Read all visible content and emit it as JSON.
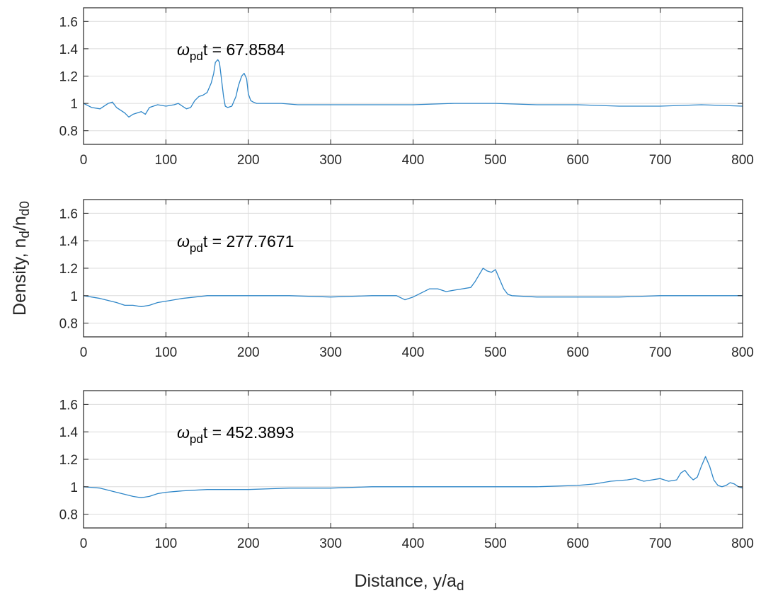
{
  "figure": {
    "xlabel": "Distance, y/a",
    "xlabel_sub": "d",
    "ylabel_main": "Density, n",
    "ylabel_sub1": "d",
    "ylabel_mid": "/n",
    "ylabel_sub2": "d0",
    "line_color": "#2E86C8"
  },
  "chart_data": [
    {
      "type": "line",
      "annotation": {
        "symbol": "ω",
        "sub": "pd",
        "rest": "t = 67.8584"
      },
      "xlim": [
        0,
        800
      ],
      "ylim": [
        0.7,
        1.7
      ],
      "xticks": [
        0,
        100,
        200,
        300,
        400,
        500,
        600,
        700,
        800
      ],
      "yticks": [
        0.8,
        1,
        1.2,
        1.4,
        1.6
      ],
      "ytick_labels": [
        "0.8",
        "1",
        "1.2",
        "1.4",
        "1.6"
      ],
      "grid": true,
      "series": [
        {
          "x": [
            0,
            10,
            20,
            30,
            35,
            40,
            50,
            55,
            60,
            70,
            75,
            80,
            90,
            100,
            110,
            115,
            120,
            125,
            130,
            135,
            140,
            145,
            150,
            155,
            158,
            160,
            163,
            165,
            168,
            170,
            172,
            175,
            180,
            185,
            188,
            192,
            195,
            198,
            200,
            203,
            206,
            210,
            220,
            240,
            260,
            300,
            350,
            400,
            450,
            480,
            500,
            550,
            600,
            650,
            700,
            750,
            800
          ],
          "y": [
            1.0,
            0.97,
            0.96,
            1.0,
            1.01,
            0.97,
            0.93,
            0.9,
            0.92,
            0.94,
            0.92,
            0.97,
            0.99,
            0.98,
            0.99,
            1.0,
            0.98,
            0.96,
            0.97,
            1.02,
            1.05,
            1.06,
            1.08,
            1.15,
            1.22,
            1.3,
            1.32,
            1.3,
            1.15,
            1.05,
            0.98,
            0.97,
            0.98,
            1.05,
            1.13,
            1.2,
            1.22,
            1.18,
            1.07,
            1.02,
            1.01,
            1.0,
            1.0,
            1.0,
            0.99,
            0.99,
            0.99,
            0.99,
            1.0,
            1.0,
            1.0,
            0.99,
            0.99,
            0.98,
            0.98,
            0.99,
            0.98
          ]
        }
      ]
    },
    {
      "type": "line",
      "annotation": {
        "symbol": "ω",
        "sub": "pd",
        "rest": "t = 277.7671"
      },
      "xlim": [
        0,
        800
      ],
      "ylim": [
        0.7,
        1.7
      ],
      "xticks": [
        0,
        100,
        200,
        300,
        400,
        500,
        600,
        700,
        800
      ],
      "yticks": [
        0.8,
        1,
        1.2,
        1.4,
        1.6
      ],
      "ytick_labels": [
        "0.8",
        "1",
        "1.2",
        "1.4",
        "1.6"
      ],
      "grid": true,
      "series": [
        {
          "x": [
            0,
            20,
            40,
            50,
            60,
            70,
            80,
            90,
            100,
            120,
            150,
            200,
            250,
            300,
            350,
            380,
            390,
            400,
            410,
            420,
            430,
            440,
            450,
            460,
            470,
            475,
            480,
            485,
            490,
            495,
            500,
            505,
            510,
            515,
            520,
            550,
            600,
            650,
            700,
            750,
            800
          ],
          "y": [
            1.0,
            0.98,
            0.95,
            0.93,
            0.93,
            0.92,
            0.93,
            0.95,
            0.96,
            0.98,
            1.0,
            1.0,
            1.0,
            0.99,
            1.0,
            1.0,
            0.97,
            0.99,
            1.02,
            1.05,
            1.05,
            1.03,
            1.04,
            1.05,
            1.06,
            1.1,
            1.15,
            1.2,
            1.18,
            1.17,
            1.19,
            1.12,
            1.05,
            1.01,
            1.0,
            0.99,
            0.99,
            0.99,
            1.0,
            1.0,
            1.0
          ]
        }
      ]
    },
    {
      "type": "line",
      "annotation": {
        "symbol": "ω",
        "sub": "pd",
        "rest": "t = 452.3893"
      },
      "xlim": [
        0,
        800
      ],
      "ylim": [
        0.7,
        1.7
      ],
      "xticks": [
        0,
        100,
        200,
        300,
        400,
        500,
        600,
        700,
        800
      ],
      "yticks": [
        0.8,
        1,
        1.2,
        1.4,
        1.6
      ],
      "ytick_labels": [
        "0.8",
        "1",
        "1.2",
        "1.4",
        "1.6"
      ],
      "grid": true,
      "series": [
        {
          "x": [
            0,
            20,
            40,
            60,
            70,
            80,
            90,
            100,
            120,
            150,
            200,
            250,
            300,
            350,
            400,
            450,
            500,
            550,
            600,
            620,
            640,
            660,
            670,
            680,
            690,
            700,
            710,
            720,
            725,
            730,
            735,
            740,
            745,
            750,
            755,
            760,
            765,
            770,
            775,
            780,
            785,
            790,
            795,
            800
          ],
          "y": [
            1.0,
            0.99,
            0.96,
            0.93,
            0.92,
            0.93,
            0.95,
            0.96,
            0.97,
            0.98,
            0.98,
            0.99,
            0.99,
            1.0,
            1.0,
            1.0,
            1.0,
            1.0,
            1.01,
            1.02,
            1.04,
            1.05,
            1.06,
            1.04,
            1.05,
            1.06,
            1.04,
            1.05,
            1.1,
            1.12,
            1.08,
            1.05,
            1.07,
            1.15,
            1.22,
            1.15,
            1.05,
            1.01,
            1.0,
            1.01,
            1.03,
            1.02,
            1.0,
            0.99
          ]
        }
      ]
    }
  ]
}
